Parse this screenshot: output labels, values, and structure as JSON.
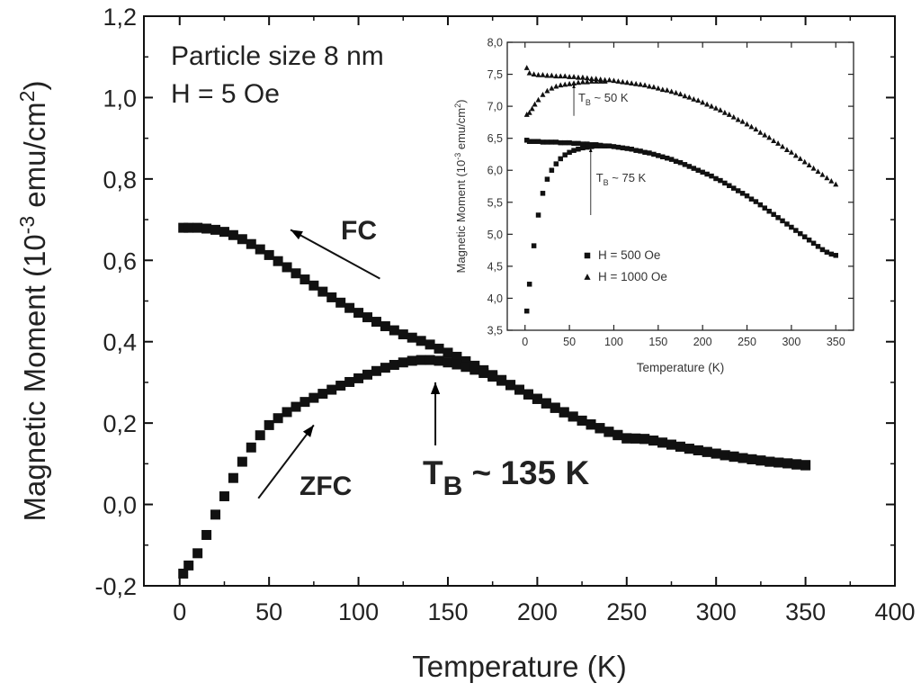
{
  "chart_data": [
    {
      "type": "scatter",
      "title": "",
      "xlabel": "Temperature (K)",
      "ylabel_parts": {
        "pre": "Magnetic Moment (10",
        "sup1": "-3",
        "mid": " emu/cm",
        "sup2": "2",
        "post": ")"
      },
      "xlim": [
        -20,
        400
      ],
      "ylim": [
        -0.2,
        1.2
      ],
      "xticks": [
        0,
        50,
        100,
        150,
        200,
        250,
        300,
        350,
        400
      ],
      "xtick_labels": [
        "0",
        "50",
        "100",
        "150",
        "200",
        "250",
        "300",
        "350",
        "400"
      ],
      "yticks": [
        -0.2,
        0.0,
        0.2,
        0.4,
        0.6,
        0.8,
        1.0,
        1.2
      ],
      "ytick_labels": [
        "-0,2",
        "0,0",
        "0,2",
        "0,4",
        "0,6",
        "0,8",
        "1,0",
        "1,2"
      ],
      "grid": false,
      "info_lines": [
        "Particle size 8 nm",
        "H = 5 Oe"
      ],
      "annotations": {
        "fc": "FC",
        "zfc": "ZFC",
        "tb_main": "T",
        "tb_sub": "B",
        "tb_rest": " ~ 135 K"
      },
      "arrows": [
        {
          "name": "fc-arrow",
          "from": [
            112,
            0.555
          ],
          "to": [
            62,
            0.675
          ]
        },
        {
          "name": "zfc-arrow",
          "from": [
            44,
            0.015
          ],
          "to": [
            75,
            0.195
          ]
        },
        {
          "name": "tb-arrow",
          "from": [
            143,
            0.145
          ],
          "to": [
            143,
            0.3
          ]
        }
      ],
      "series": [
        {
          "name": "FC",
          "marker": "square",
          "x": [
            2,
            5,
            10,
            15,
            20,
            25,
            30,
            35,
            40,
            45,
            50,
            55,
            60,
            65,
            70,
            75,
            80,
            85,
            90,
            95,
            100,
            105,
            110,
            115,
            120,
            125,
            130,
            135,
            140,
            145,
            150,
            155,
            160,
            165,
            170,
            175,
            180,
            185,
            190,
            195,
            200,
            205,
            210,
            215,
            220,
            225,
            230,
            235,
            240,
            245,
            250,
            255,
            260,
            265,
            270,
            275,
            280,
            285,
            290,
            295,
            300,
            305,
            310,
            315,
            320,
            325,
            330,
            335,
            340,
            345,
            350
          ],
          "y": [
            0.68,
            0.68,
            0.68,
            0.678,
            0.675,
            0.67,
            0.662,
            0.652,
            0.64,
            0.627,
            0.613,
            0.598,
            0.583,
            0.568,
            0.553,
            0.538,
            0.523,
            0.509,
            0.496,
            0.483,
            0.471,
            0.46,
            0.449,
            0.438,
            0.428,
            0.418,
            0.41,
            0.402,
            0.393,
            0.383,
            0.373,
            0.363,
            0.352,
            0.341,
            0.33,
            0.318,
            0.306,
            0.294,
            0.282,
            0.27,
            0.259,
            0.248,
            0.237,
            0.226,
            0.216,
            0.206,
            0.197,
            0.188,
            0.179,
            0.171,
            0.163,
            0.162,
            0.161,
            0.157,
            0.152,
            0.147,
            0.142,
            0.137,
            0.133,
            0.129,
            0.125,
            0.121,
            0.118,
            0.114,
            0.111,
            0.108,
            0.105,
            0.103,
            0.101,
            0.099,
            0.097
          ]
        },
        {
          "name": "ZFC",
          "marker": "square",
          "x": [
            2,
            5,
            10,
            15,
            20,
            25,
            30,
            35,
            40,
            45,
            50,
            55,
            60,
            65,
            70,
            75,
            80,
            85,
            90,
            95,
            100,
            105,
            110,
            115,
            120,
            125,
            130,
            135,
            140,
            145,
            150,
            155,
            160,
            165,
            170,
            175,
            180,
            185,
            190,
            195,
            200,
            205,
            210,
            215,
            220,
            225,
            230,
            235,
            240,
            245,
            250,
            255,
            260,
            265,
            270,
            275,
            280,
            285,
            290,
            295,
            300,
            305,
            310,
            315,
            320,
            325,
            330,
            335,
            340,
            345,
            350
          ],
          "y": [
            -0.17,
            -0.15,
            -0.12,
            -0.075,
            -0.025,
            0.02,
            0.065,
            0.105,
            0.14,
            0.17,
            0.195,
            0.212,
            0.227,
            0.24,
            0.252,
            0.262,
            0.272,
            0.282,
            0.292,
            0.301,
            0.31,
            0.319,
            0.328,
            0.336,
            0.343,
            0.349,
            0.353,
            0.355,
            0.355,
            0.353,
            0.349,
            0.344,
            0.338,
            0.331,
            0.323,
            0.314,
            0.304,
            0.293,
            0.282,
            0.271,
            0.26,
            0.249,
            0.238,
            0.227,
            0.216,
            0.206,
            0.196,
            0.187,
            0.178,
            0.17,
            0.162,
            0.162,
            0.161,
            0.157,
            0.152,
            0.147,
            0.142,
            0.137,
            0.133,
            0.129,
            0.125,
            0.121,
            0.117,
            0.114,
            0.111,
            0.108,
            0.105,
            0.103,
            0.101,
            0.098,
            0.096
          ]
        }
      ]
    },
    {
      "type": "scatter",
      "title": "",
      "inset": true,
      "xlabel": "Temperature (K)",
      "ylabel_parts": {
        "pre": "Magnetic Moment (10",
        "sup1": "-3",
        "mid": " emu/cm",
        "sup2": "2",
        "post": ")"
      },
      "xlim": [
        -20,
        370
      ],
      "ylim": [
        3.5,
        8.0
      ],
      "xticks": [
        0,
        50,
        100,
        150,
        200,
        250,
        300,
        350
      ],
      "xtick_labels": [
        "0",
        "50",
        "100",
        "150",
        "200",
        "250",
        "300",
        "350"
      ],
      "yticks": [
        3.5,
        4.0,
        4.5,
        5.0,
        5.5,
        6.0,
        6.5,
        7.0,
        7.5,
        8.0
      ],
      "ytick_labels": [
        "3,5",
        "4,0",
        "4,5",
        "5,0",
        "5,5",
        "6,0",
        "6,5",
        "7,0",
        "7,5",
        "8,0"
      ],
      "grid": false,
      "legend": {
        "placement": "bottom-center",
        "entries": [
          {
            "marker": "square",
            "label": "H = 500 Oe"
          },
          {
            "marker": "triangle",
            "label": "H = 1000 Oe"
          }
        ]
      },
      "annotations": [
        {
          "name": "tb-50",
          "pre": "T",
          "sub": "B",
          "post": " ~ 50 K",
          "arrow_x": 55,
          "arrow_from": 6.85,
          "arrow_to": 7.35,
          "text_x": 60,
          "text_y": 7.07
        },
        {
          "name": "tb-75",
          "pre": "T",
          "sub": "B",
          "post": " ~ 75 K",
          "arrow_x": 74,
          "arrow_from": 5.3,
          "arrow_to": 6.35,
          "text_x": 80,
          "text_y": 5.82
        }
      ],
      "series": [
        {
          "name": "H = 1000 Oe ZFC",
          "marker": "triangle",
          "x": [
            2,
            5,
            8,
            11,
            15,
            20,
            25,
            30,
            35,
            40,
            45,
            50,
            55,
            60,
            65,
            70,
            75,
            80,
            85,
            90
          ],
          "y": [
            6.87,
            6.9,
            6.96,
            7.03,
            7.1,
            7.18,
            7.24,
            7.28,
            7.31,
            7.33,
            7.34,
            7.35,
            7.36,
            7.37,
            7.38,
            7.38,
            7.39,
            7.39,
            7.39,
            7.39
          ]
        },
        {
          "name": "H = 1000 Oe FC",
          "marker": "triangle",
          "x": [
            2,
            5,
            10,
            15,
            20,
            25,
            30,
            35,
            40,
            45,
            50,
            55,
            60,
            65,
            70,
            75,
            80,
            85,
            90,
            95,
            100,
            105,
            110,
            115,
            120,
            125,
            130,
            135,
            140,
            145,
            150,
            155,
            160,
            165,
            170,
            175,
            180,
            185,
            190,
            195,
            200,
            205,
            210,
            215,
            220,
            225,
            230,
            235,
            240,
            245,
            250,
            255,
            260,
            265,
            270,
            275,
            280,
            285,
            290,
            295,
            300,
            305,
            310,
            315,
            320,
            325,
            330,
            335,
            340,
            345,
            350
          ],
          "y": [
            7.6,
            7.52,
            7.5,
            7.49,
            7.49,
            7.48,
            7.48,
            7.47,
            7.47,
            7.47,
            7.46,
            7.46,
            7.45,
            7.45,
            7.44,
            7.43,
            7.43,
            7.42,
            7.41,
            7.41,
            7.4,
            7.39,
            7.38,
            7.37,
            7.36,
            7.35,
            7.34,
            7.33,
            7.31,
            7.3,
            7.28,
            7.26,
            7.25,
            7.23,
            7.21,
            7.19,
            7.16,
            7.14,
            7.11,
            7.09,
            7.06,
            7.03,
            7.0,
            6.97,
            6.94,
            6.9,
            6.87,
            6.83,
            6.79,
            6.76,
            6.72,
            6.68,
            6.64,
            6.59,
            6.55,
            6.51,
            6.46,
            6.42,
            6.37,
            6.32,
            6.28,
            6.23,
            6.18,
            6.13,
            6.08,
            6.03,
            5.98,
            5.93,
            5.88,
            5.83,
            5.78
          ]
        },
        {
          "name": "H = 500 Oe ZFC",
          "marker": "square",
          "x": [
            2,
            5,
            10,
            15,
            20,
            25,
            30,
            35,
            40,
            45,
            50,
            55,
            60,
            65,
            70,
            75,
            80,
            85,
            90
          ],
          "y": [
            3.8,
            4.22,
            4.82,
            5.3,
            5.64,
            5.86,
            6.0,
            6.1,
            6.18,
            6.24,
            6.28,
            6.31,
            6.33,
            6.35,
            6.36,
            6.37,
            6.38,
            6.38,
            6.38
          ]
        },
        {
          "name": "H = 500 Oe FC",
          "marker": "square",
          "x": [
            2,
            5,
            10,
            15,
            20,
            25,
            30,
            35,
            40,
            45,
            50,
            55,
            60,
            65,
            70,
            75,
            80,
            85,
            90,
            95,
            100,
            105,
            110,
            115,
            120,
            125,
            130,
            135,
            140,
            145,
            150,
            155,
            160,
            165,
            170,
            175,
            180,
            185,
            190,
            195,
            200,
            205,
            210,
            215,
            220,
            225,
            230,
            235,
            240,
            245,
            250,
            255,
            260,
            265,
            270,
            275,
            280,
            285,
            290,
            295,
            300,
            305,
            310,
            315,
            320,
            325,
            330,
            335,
            340,
            345,
            350
          ],
          "y": [
            6.47,
            6.45,
            6.45,
            6.45,
            6.44,
            6.44,
            6.44,
            6.44,
            6.43,
            6.43,
            6.43,
            6.42,
            6.42,
            6.41,
            6.41,
            6.4,
            6.4,
            6.39,
            6.38,
            6.38,
            6.37,
            6.36,
            6.35,
            6.34,
            6.33,
            6.31,
            6.3,
            6.28,
            6.27,
            6.25,
            6.23,
            6.21,
            6.19,
            6.17,
            6.14,
            6.12,
            6.09,
            6.06,
            6.03,
            6.0,
            5.97,
            5.94,
            5.91,
            5.87,
            5.84,
            5.8,
            5.76,
            5.72,
            5.68,
            5.64,
            5.6,
            5.55,
            5.51,
            5.46,
            5.41,
            5.36,
            5.31,
            5.26,
            5.21,
            5.16,
            5.11,
            5.06,
            5.01,
            4.96,
            4.91,
            4.86,
            4.81,
            4.76,
            4.72,
            4.69,
            4.67
          ]
        }
      ]
    }
  ]
}
